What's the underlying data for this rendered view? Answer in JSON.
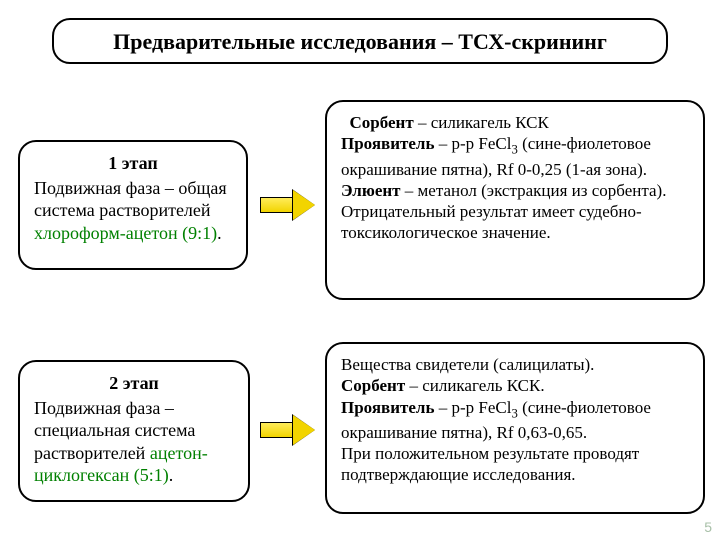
{
  "title": "Предварительные исследования – ТСХ-скрининг",
  "stage1": {
    "title": "1 этап",
    "line1": "Подвижная фаза – общая система растворителей ",
    "solvent": "хлороформ-ацетон (9:1)",
    "dot": "."
  },
  "stage2": {
    "title": "2 этап",
    "line1": "Подвижная фаза – специальная система растворителей ",
    "solvent": "ацетон-циклогексан (5:1)",
    "dot": "."
  },
  "detail1": {
    "sorbent_label": "Сорбент",
    "sorbent_val": " – силикагель КСК",
    "dev_label": "Проявитель",
    "dev_pre": " – р-р Fe",
    "dev_sub": "3",
    "dev_mid": "Cl",
    "dev_post": " (сине-фиолетовое окрашивание пятна), Rf 0-0,25 (1-ая зона).",
    "eluent_label": "Элюент",
    "eluent_val": " – метанол (экстракция из сорбента).",
    "neg": "  Отрицательный результат имеет судебно-токсикологическое значение."
  },
  "detail2": {
    "line1": "Вещества свидетели (салицилаты).",
    "sorbent_label": "Сорбент",
    "sorbent_val": " – силикагель КСК.",
    "dev_label": "Проявитель",
    "dev_pre": " – р-р Fe",
    "dev_mid": "Cl",
    "dev_sub": "3",
    "dev_post": " (сине-фиолетовое окрашивание пятна), Rf 0,63-0,65.",
    "pos": "При положительном результате проводят подтверждающие исследования."
  },
  "page_number": "5",
  "colors": {
    "border": "#000000",
    "background": "#ffffff",
    "solvent_green": "#008000",
    "arrow_fill": "#f2d400",
    "pagenum": "#a8c0a8"
  }
}
